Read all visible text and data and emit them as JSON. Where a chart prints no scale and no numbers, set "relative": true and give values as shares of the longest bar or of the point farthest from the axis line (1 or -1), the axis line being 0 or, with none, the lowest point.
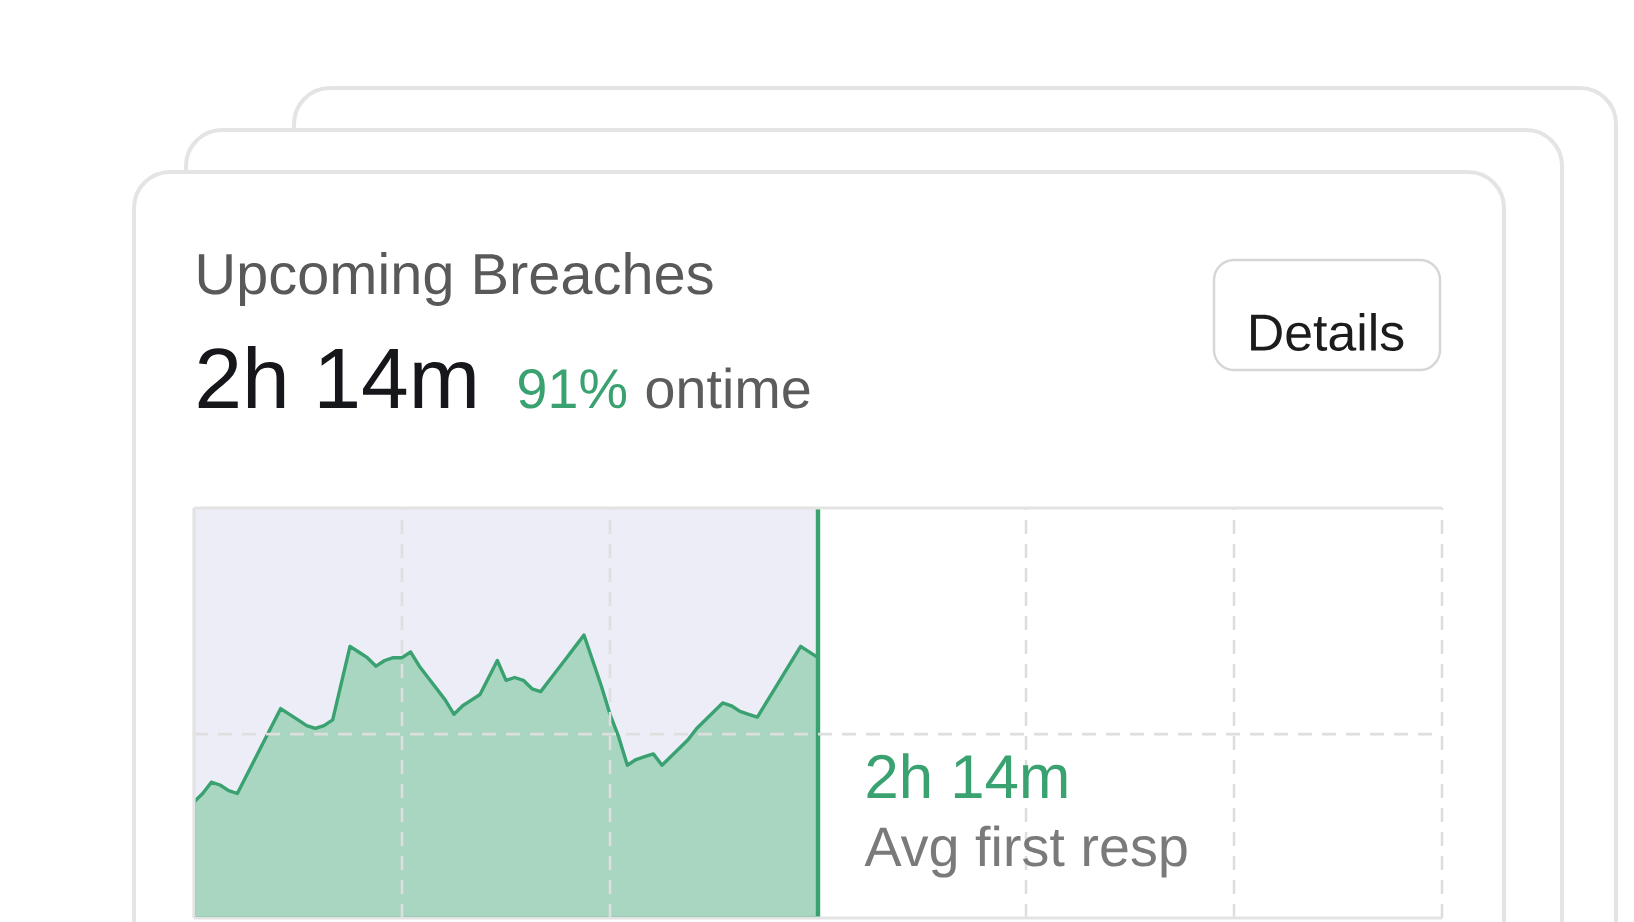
{
  "chart_data": {
    "type": "area",
    "title": "Upcoming Breaches",
    "subtitle": "2h 14m",
    "annotations": [
      "91%",
      "ontime",
      "Details",
      "2h 14m",
      "Avg first resp"
    ],
    "relative": true,
    "color": "#a8d6c0",
    "grid": true,
    "tick_labels": false,
    "categories": [
      null,
      null,
      null,
      null,
      null,
      null,
      null,
      null,
      null,
      null,
      null,
      null,
      null,
      null,
      null,
      null,
      null,
      null,
      null,
      null,
      null,
      null,
      null,
      null,
      null,
      null,
      null,
      null,
      null,
      null,
      null,
      null,
      null,
      null,
      null,
      null,
      null,
      null,
      null,
      null,
      null,
      null,
      null,
      null,
      null,
      null,
      null,
      null,
      null,
      null,
      null,
      null,
      null,
      null,
      null,
      null,
      null,
      null,
      null,
      null,
      null,
      null,
      null,
      null,
      null,
      null,
      null,
      null,
      null,
      null,
      null,
      null,
      null,
      null,
      null,
      null,
      null,
      null,
      null,
      null,
      null,
      null,
      null,
      null,
      null,
      null,
      null,
      null,
      null,
      null,
      null,
      null,
      null,
      null,
      null,
      null,
      null,
      null,
      null,
      null,
      null,
      null,
      null,
      null,
      null,
      null,
      null,
      null,
      null,
      null,
      null,
      null,
      null,
      null,
      null,
      null,
      null,
      null,
      null,
      null,
      null,
      null,
      null,
      null,
      null,
      null,
      null,
      null,
      null,
      null,
      null,
      null,
      null,
      null,
      null,
      null,
      null,
      null,
      null,
      null,
      null,
      null,
      null,
      null,
      null
    ],
    "values": [
      0.41,
      0.44,
      0.48,
      0.47,
      0.45,
      0.44,
      0.5,
      0.56,
      0.62,
      0.68,
      0.74,
      0.72,
      0.7,
      0.68,
      0.67,
      0.68,
      0.7,
      0.83,
      0.96,
      0.94,
      0.92,
      0.89,
      0.91,
      0.92,
      0.92,
      0.94,
      0.89,
      0.85,
      0.81,
      0.77,
      0.72,
      0.75,
      0.77,
      0.79,
      0.85,
      0.91,
      0.84,
      0.85,
      0.84,
      0.81,
      0.8,
      0.84,
      0.88,
      0.92,
      0.96,
      1.0,
      0.91,
      0.82,
      0.72,
      0.64,
      0.54,
      0.56,
      0.57,
      0.58,
      0.54,
      0.57,
      0.6,
      0.63,
      0.67,
      0.7,
      0.73,
      0.76,
      0.75,
      0.73,
      0.72,
      0.71,
      0.76,
      0.81,
      0.86,
      0.91,
      0.96,
      0.94,
      0.92,
      null,
      null,
      null,
      null,
      null,
      null,
      null,
      null,
      null,
      null,
      null,
      null,
      null,
      null,
      null,
      null,
      null,
      null,
      null,
      null,
      null,
      null,
      null,
      null,
      null,
      null,
      null,
      null,
      null,
      null,
      null,
      null,
      null,
      null,
      null,
      null,
      null,
      null,
      null,
      null,
      null,
      null,
      null,
      null,
      null,
      null,
      null,
      null,
      null,
      null,
      null,
      null,
      null,
      null,
      null,
      null,
      null,
      null,
      null,
      null,
      null,
      null,
      null,
      null,
      null,
      null,
      null,
      null,
      null,
      null,
      null,
      null
    ]
  }
}
